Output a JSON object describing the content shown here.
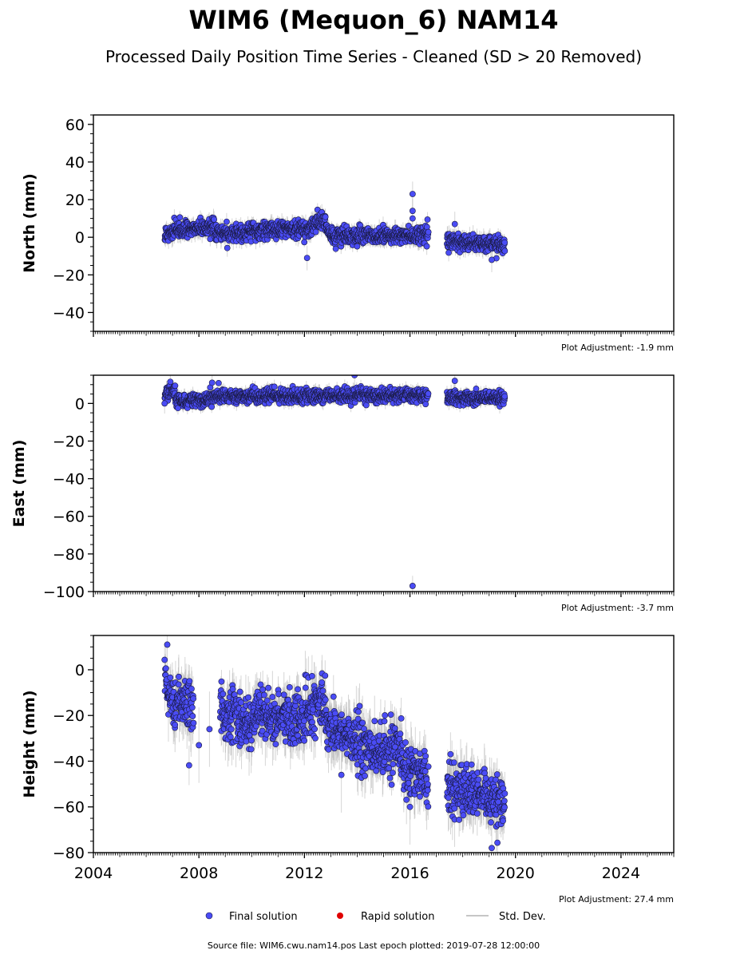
{
  "header": {
    "title": "WIM6 (Mequon_6) NAM14",
    "subtitle": "Processed Daily Position Time Series - Cleaned (SD > 20 Removed)"
  },
  "colors": {
    "final": "#4a4cf5",
    "final_edge": "#1a1a40",
    "rapid": "#e00000",
    "stddev": "#b4b4b4"
  },
  "legend": {
    "final": "Final solution",
    "rapid": "Rapid solution",
    "stddev": "Std. Dev."
  },
  "footer": {
    "source": "Source file: WIM6.cwu.nam14.pos  Last epoch plotted: 2019-07-28 12:00:00"
  },
  "chart_data": [
    {
      "type": "scatter",
      "component": "north",
      "ylabel": "North (mm)",
      "xlim": [
        2004,
        2026
      ],
      "ylim": [
        -50,
        65
      ],
      "yticks": [
        -40,
        -20,
        0,
        20,
        40,
        60
      ],
      "ytick_labels": [
        "−40",
        "−20",
        "0",
        "20",
        "40",
        "60"
      ],
      "adjustment": "Plot Adjustment: -1.9 mm",
      "trend_segments": [
        {
          "x0": 2006.7,
          "x1": 2007.3,
          "y0": 1,
          "y1": 5
        },
        {
          "x0": 2007.3,
          "x1": 2008.6,
          "y0": 4,
          "y1": 5
        },
        {
          "x0": 2008.6,
          "x1": 2010.0,
          "y0": 2,
          "y1": 3
        },
        {
          "x0": 2010.0,
          "x1": 2012.0,
          "y0": 4,
          "y1": 4
        },
        {
          "x0": 2012.0,
          "x1": 2012.8,
          "y0": 4,
          "y1": 10
        },
        {
          "x0": 2012.8,
          "x1": 2013.2,
          "y0": 5,
          "y1": -2
        },
        {
          "x0": 2013.2,
          "x1": 2016.7,
          "y0": 1,
          "y1": 1
        },
        {
          "x0": 2017.4,
          "x1": 2019.6,
          "y0": -2,
          "y1": -4
        }
      ],
      "scatter_sd": 2.2,
      "outliers": [
        {
          "x": 2016.1,
          "y": 23
        },
        {
          "x": 2016.1,
          "y": 14
        },
        {
          "x": 2016.1,
          "y": 10
        },
        {
          "x": 2012.1,
          "y": -11
        },
        {
          "x": 2019.1,
          "y": -12
        },
        {
          "x": 2017.7,
          "y": 7
        }
      ]
    },
    {
      "type": "scatter",
      "component": "east",
      "ylabel": "East (mm)",
      "xlim": [
        2004,
        2026
      ],
      "ylim": [
        -100,
        15
      ],
      "yticks": [
        -100,
        -80,
        -60,
        -40,
        -20,
        0
      ],
      "ytick_labels": [
        "−100",
        "−80",
        "−60",
        "−40",
        "−20",
        "0"
      ],
      "adjustment": "Plot Adjustment: -3.7 mm",
      "trend_segments": [
        {
          "x0": 2006.7,
          "x1": 2007.1,
          "y0": 4,
          "y1": 7
        },
        {
          "x0": 2007.1,
          "x1": 2008.6,
          "y0": 1,
          "y1": 3
        },
        {
          "x0": 2008.6,
          "x1": 2016.7,
          "y0": 4,
          "y1": 4
        },
        {
          "x0": 2017.4,
          "x1": 2019.6,
          "y0": 3,
          "y1": 3
        }
      ],
      "scatter_sd": 1.8,
      "outliers": [
        {
          "x": 2016.1,
          "y": -97
        },
        {
          "x": 2013.9,
          "y": 15
        },
        {
          "x": 2017.7,
          "y": 12
        },
        {
          "x": 2006.7,
          "y": 0
        },
        {
          "x": 2008.5,
          "y": 11
        }
      ]
    },
    {
      "type": "scatter",
      "component": "height",
      "ylabel": "Height (mm)",
      "xlim": [
        2004,
        2026
      ],
      "ylim": [
        -80,
        15
      ],
      "yticks": [
        -80,
        -60,
        -40,
        -20,
        0
      ],
      "ytick_labels": [
        "−80",
        "−60",
        "−40",
        "−20",
        "0"
      ],
      "adjustment": "Plot Adjustment: 27.4 mm",
      "trend_segments": [
        {
          "x0": 2006.7,
          "x1": 2007.2,
          "y0": -5,
          "y1": -18
        },
        {
          "x0": 2007.2,
          "x1": 2007.8,
          "y0": -14,
          "y1": -16
        },
        {
          "x0": 2008.8,
          "x1": 2010.0,
          "y0": -18,
          "y1": -24
        },
        {
          "x0": 2010.0,
          "x1": 2012.0,
          "y0": -20,
          "y1": -22
        },
        {
          "x0": 2012.0,
          "x1": 2012.8,
          "y0": -18,
          "y1": -14
        },
        {
          "x0": 2012.8,
          "x1": 2015.0,
          "y0": -24,
          "y1": -38
        },
        {
          "x0": 2015.0,
          "x1": 2015.7,
          "y0": -36,
          "y1": -35
        },
        {
          "x0": 2015.7,
          "x1": 2016.7,
          "y0": -40,
          "y1": -48
        },
        {
          "x0": 2017.4,
          "x1": 2019.6,
          "y0": -50,
          "y1": -60
        }
      ],
      "scatter_sd": 5.5,
      "outliers": [
        {
          "x": 2006.8,
          "y": 11
        },
        {
          "x": 2008.0,
          "y": -33
        },
        {
          "x": 2008.4,
          "y": -26
        },
        {
          "x": 2019.1,
          "y": -78
        },
        {
          "x": 2013.4,
          "y": -46
        },
        {
          "x": 2016.0,
          "y": -60
        }
      ]
    }
  ],
  "xaxis": {
    "ticks": [
      2004,
      2008,
      2012,
      2016,
      2020,
      2024
    ],
    "tick_labels": [
      "2004",
      "2008",
      "2012",
      "2016",
      "2020",
      "2024"
    ],
    "minor_per_year": 12
  }
}
